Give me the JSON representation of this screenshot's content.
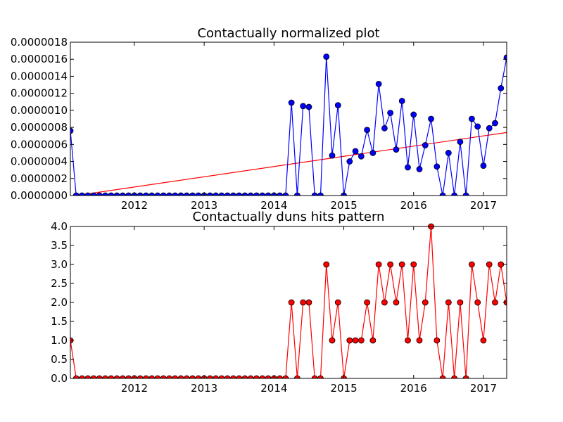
{
  "chart_data": [
    {
      "type": "line",
      "title": "Contactually normalized plot",
      "xlabel": "",
      "ylabel": "",
      "x_range": [
        "2011-02",
        "2017-05"
      ],
      "ylim": [
        0,
        1.8e-06
      ],
      "x_tick_labels": [
        "2012",
        "2013",
        "2014",
        "2015",
        "2016",
        "2017"
      ],
      "y_tick_labels": [
        "0.0000000",
        "0.0000002",
        "0.0000004",
        "0.0000006",
        "0.0000008",
        "0.0000010",
        "0.0000012",
        "0.0000014",
        "0.0000016",
        "0.0000018"
      ],
      "grid": false,
      "x": [
        "2011-02",
        "2011-03",
        "2011-04",
        "2011-05",
        "2011-06",
        "2011-07",
        "2011-08",
        "2011-09",
        "2011-10",
        "2011-11",
        "2011-12",
        "2012-01",
        "2012-02",
        "2012-03",
        "2012-04",
        "2012-05",
        "2012-06",
        "2012-07",
        "2012-08",
        "2012-09",
        "2012-10",
        "2012-11",
        "2012-12",
        "2013-01",
        "2013-02",
        "2013-03",
        "2013-04",
        "2013-05",
        "2013-06",
        "2013-07",
        "2013-08",
        "2013-09",
        "2013-10",
        "2013-11",
        "2013-12",
        "2014-01",
        "2014-02",
        "2014-03",
        "2014-04",
        "2014-05",
        "2014-06",
        "2014-07",
        "2014-08",
        "2014-09",
        "2014-10",
        "2014-11",
        "2014-12",
        "2015-01",
        "2015-02",
        "2015-03",
        "2015-04",
        "2015-05",
        "2015-06",
        "2015-07",
        "2015-08",
        "2015-09",
        "2015-10",
        "2015-11",
        "2015-12",
        "2016-01",
        "2016-02",
        "2016-03",
        "2016-04",
        "2016-05",
        "2016-06",
        "2016-07",
        "2016-08",
        "2016-09",
        "2016-10",
        "2016-11",
        "2016-12",
        "2017-01",
        "2017-02",
        "2017-03",
        "2017-04",
        "2017-05"
      ],
      "series": [
        {
          "color": "#0000ff",
          "marker": "circle",
          "values": [
            7.6e-07,
            0,
            0,
            0,
            0,
            0,
            0,
            0,
            0,
            0,
            0,
            0,
            0,
            0,
            0,
            0,
            0,
            0,
            0,
            0,
            0,
            0,
            0,
            0,
            0,
            0,
            0,
            0,
            0,
            0,
            0,
            0,
            0,
            0,
            0,
            0,
            0,
            0,
            1.09e-06,
            0,
            1.05e-06,
            1.04e-06,
            0,
            0,
            1.63e-06,
            4.7e-07,
            1.06e-06,
            0,
            4e-07,
            5.2e-07,
            4.6e-07,
            7.7e-07,
            5e-07,
            1.31e-06,
            7.9e-07,
            9.7e-07,
            5.4e-07,
            1.11e-06,
            3.3e-07,
            9.5e-07,
            3.1e-07,
            5.9e-07,
            9e-07,
            3.4e-07,
            0,
            5e-07,
            0,
            6.3e-07,
            0,
            9e-07,
            8.1e-07,
            3.5e-07,
            7.9e-07,
            8.5e-07,
            1.26e-06,
            1.62e-06
          ]
        }
      ],
      "trendline": {
        "color": "#ff0000",
        "x": [
          "2011-02",
          "2017-05"
        ],
        "y": [
          -1e-08,
          7.4e-07
        ]
      }
    },
    {
      "type": "line",
      "title": "Contactually duns hits pattern",
      "xlabel": "",
      "ylabel": "",
      "x_range": [
        "2011-02",
        "2017-05"
      ],
      "ylim": [
        0,
        4
      ],
      "x_tick_labels": [
        "2012",
        "2013",
        "2014",
        "2015",
        "2016",
        "2017"
      ],
      "y_tick_labels": [
        "0.0",
        "0.5",
        "1.0",
        "1.5",
        "2.0",
        "2.5",
        "3.0",
        "3.5",
        "4.0"
      ],
      "grid": false,
      "x": [
        "2011-02",
        "2011-03",
        "2011-04",
        "2011-05",
        "2011-06",
        "2011-07",
        "2011-08",
        "2011-09",
        "2011-10",
        "2011-11",
        "2011-12",
        "2012-01",
        "2012-02",
        "2012-03",
        "2012-04",
        "2012-05",
        "2012-06",
        "2012-07",
        "2012-08",
        "2012-09",
        "2012-10",
        "2012-11",
        "2012-12",
        "2013-01",
        "2013-02",
        "2013-03",
        "2013-04",
        "2013-05",
        "2013-06",
        "2013-07",
        "2013-08",
        "2013-09",
        "2013-10",
        "2013-11",
        "2013-12",
        "2014-01",
        "2014-02",
        "2014-03",
        "2014-04",
        "2014-05",
        "2014-06",
        "2014-07",
        "2014-08",
        "2014-09",
        "2014-10",
        "2014-11",
        "2014-12",
        "2015-01",
        "2015-02",
        "2015-03",
        "2015-04",
        "2015-05",
        "2015-06",
        "2015-07",
        "2015-08",
        "2015-09",
        "2015-10",
        "2015-11",
        "2015-12",
        "2016-01",
        "2016-02",
        "2016-03",
        "2016-04",
        "2016-05",
        "2016-06",
        "2016-07",
        "2016-08",
        "2016-09",
        "2016-10",
        "2016-11",
        "2016-12",
        "2017-01",
        "2017-02",
        "2017-03",
        "2017-04",
        "2017-05"
      ],
      "series": [
        {
          "color": "#ff0000",
          "marker": "circle",
          "values": [
            1,
            0,
            0,
            0,
            0,
            0,
            0,
            0,
            0,
            0,
            0,
            0,
            0,
            0,
            0,
            0,
            0,
            0,
            0,
            0,
            0,
            0,
            0,
            0,
            0,
            0,
            0,
            0,
            0,
            0,
            0,
            0,
            0,
            0,
            0,
            0,
            0,
            0,
            2,
            0,
            2,
            2,
            0,
            0,
            3,
            1,
            2,
            0,
            1,
            1,
            1,
            2,
            1,
            3,
            2,
            3,
            2,
            3,
            1,
            3,
            1,
            2,
            4,
            1,
            0,
            2,
            0,
            2,
            0,
            3,
            2,
            1,
            3,
            2,
            3,
            2
          ]
        }
      ]
    }
  ]
}
